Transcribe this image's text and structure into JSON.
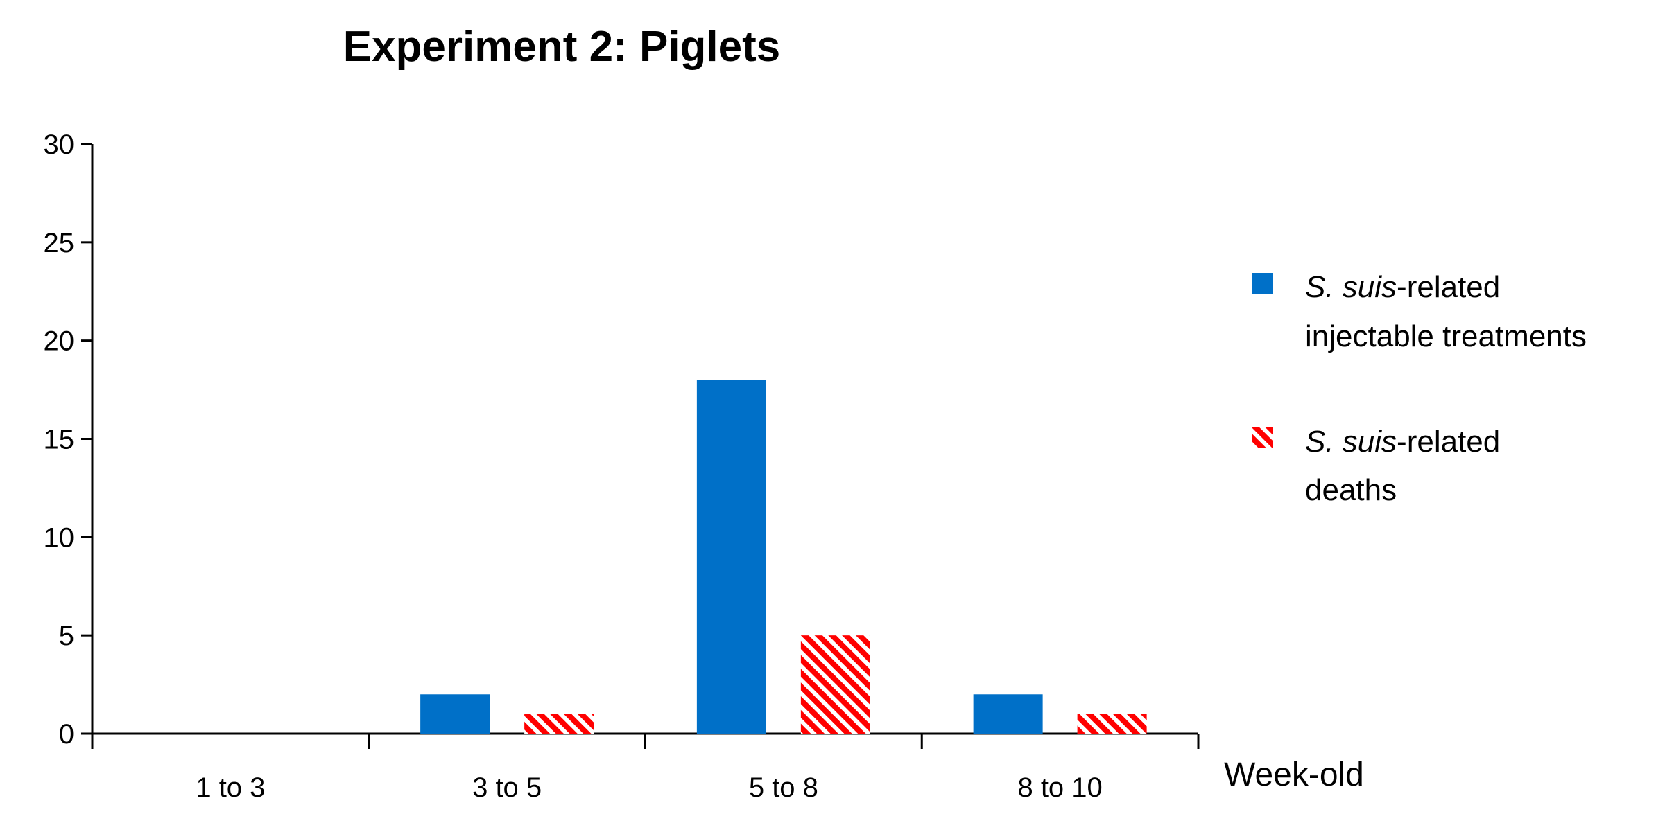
{
  "chart_data": {
    "type": "bar",
    "title": "Experiment 2: Piglets",
    "xlabel": "Week-old",
    "ylabel": "",
    "categories": [
      "1 to 3",
      "3 to 5",
      "5 to 8",
      "8 to 10"
    ],
    "ylim": [
      0,
      30
    ],
    "yticks": [
      0,
      5,
      10,
      15,
      20,
      25,
      30
    ],
    "series": [
      {
        "name": "S. suis-related injectable treatments",
        "name_italic": "S. suis",
        "name_rest_line1": "-related",
        "name_line2": "injectable treatments",
        "values": [
          0,
          2,
          18,
          2
        ],
        "color": "#0070C8",
        "pattern": "solid"
      },
      {
        "name": "S. suis-related deaths",
        "name_italic": "S. suis",
        "name_rest_line1": "-related",
        "name_line2": "deaths",
        "values": [
          0,
          1,
          5,
          1
        ],
        "color": "#FF0000",
        "pattern": "diagonal-hatch"
      }
    ],
    "grid": false,
    "legend_position": "right"
  }
}
